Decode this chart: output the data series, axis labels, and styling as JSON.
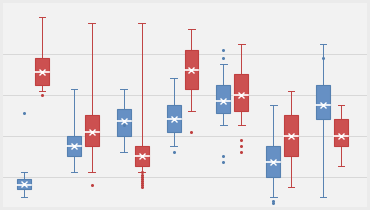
{
  "background_color": "#ebebeb",
  "plot_background": "#f2f2f2",
  "grid_color": "#d8d8d8",
  "blue_color": "#5580b0",
  "red_color": "#c04040",
  "blue_fill": "#6690c4",
  "red_fill": "#cc5050",
  "ylim": [
    -5.5,
    4.5
  ],
  "grid_lines": [
    -4,
    -2,
    0,
    2
  ],
  "groups": [
    {
      "blue": {
        "whislo": -5.0,
        "q1": -4.6,
        "med": -4.4,
        "q3": -4.1,
        "whishi": -3.8,
        "mean": -4.35,
        "fliers_lo": [],
        "fliers_hi": [
          -0.9
        ]
      },
      "red": {
        "whislo": 0.2,
        "q1": 0.5,
        "med": 1.1,
        "q3": 1.8,
        "whishi": 3.8,
        "mean": 1.1,
        "fliers_lo": [
          0.0
        ],
        "fliers_hi": []
      }
    },
    {
      "blue": {
        "whislo": -3.8,
        "q1": -3.0,
        "med": -2.5,
        "q3": -2.0,
        "whishi": 0.3,
        "mean": -2.5,
        "fliers_lo": [],
        "fliers_hi": []
      },
      "red": {
        "whislo": -3.8,
        "q1": -2.5,
        "med": -1.8,
        "q3": -1.0,
        "whishi": 3.5,
        "mean": -1.8,
        "fliers_lo": [
          -4.4
        ],
        "fliers_hi": []
      }
    },
    {
      "blue": {
        "whislo": -2.8,
        "q1": -2.0,
        "med": -1.3,
        "q3": -0.7,
        "whishi": 0.3,
        "mean": -1.3,
        "fliers_lo": [],
        "fliers_hi": [
          -1.5
        ]
      },
      "red": {
        "whislo": -3.8,
        "q1": -3.5,
        "med": -3.0,
        "q3": -2.5,
        "whishi": 3.5,
        "mean": -3.0,
        "fliers_lo": [
          -3.8,
          -3.9,
          -4.0,
          -4.1,
          -4.2,
          -4.3,
          -4.4,
          -4.5
        ],
        "fliers_hi": []
      }
    },
    {
      "blue": {
        "whislo": -2.5,
        "q1": -1.8,
        "med": -1.2,
        "q3": -0.5,
        "whishi": 0.8,
        "mean": -1.2,
        "fliers_lo": [
          -2.8
        ],
        "fliers_hi": []
      },
      "red": {
        "whislo": -0.8,
        "q1": 0.3,
        "med": 1.2,
        "q3": 2.2,
        "whishi": 3.2,
        "mean": 1.2,
        "fliers_lo": [
          -1.8
        ],
        "fliers_hi": []
      }
    },
    {
      "blue": {
        "whislo": -1.5,
        "q1": -0.9,
        "med": -0.3,
        "q3": 0.5,
        "whishi": 1.5,
        "mean": -0.3,
        "fliers_lo": [
          -3.0,
          -3.3
        ],
        "fliers_hi": [
          1.8,
          2.2
        ]
      },
      "red": {
        "whislo": -1.5,
        "q1": -0.8,
        "med": 0.0,
        "q3": 1.0,
        "whishi": 2.5,
        "mean": 0.0,
        "fliers_lo": [
          -2.2,
          -2.5,
          -2.8
        ],
        "fliers_hi": []
      }
    },
    {
      "blue": {
        "whislo": -5.0,
        "q1": -4.0,
        "med": -3.3,
        "q3": -2.5,
        "whishi": -0.5,
        "mean": -3.3,
        "fliers_lo": [
          -5.2,
          -5.3
        ],
        "fliers_hi": []
      },
      "red": {
        "whislo": -4.5,
        "q1": -3.0,
        "med": -2.0,
        "q3": -1.0,
        "whishi": 0.2,
        "mean": -2.0,
        "fliers_lo": [],
        "fliers_hi": []
      }
    },
    {
      "blue": {
        "whislo": -5.0,
        "q1": -1.2,
        "med": -0.5,
        "q3": 0.5,
        "whishi": 2.5,
        "mean": -0.5,
        "fliers_lo": [],
        "fliers_hi": [
          1.8
        ]
      },
      "red": {
        "whislo": -3.5,
        "q1": -2.5,
        "med": -2.0,
        "q3": -1.2,
        "whishi": -0.5,
        "mean": -2.0,
        "fliers_lo": [],
        "fliers_hi": []
      }
    }
  ]
}
